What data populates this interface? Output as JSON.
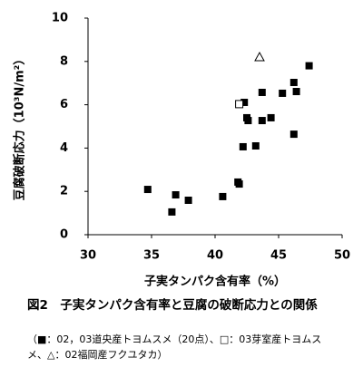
{
  "chart_data": {
    "type": "scatter",
    "xlabel": "子実タンパク含有率（%）",
    "ylabel": "豆腐破断応力（10³N/m²）",
    "caption": "図2　子実タンパク含有率と豆腐の破断応力との関係",
    "note": "（■：02，03道央産トヨムスメ（20点）、□：03芽室産トヨムスメ、△：02福岡産フクユタカ）",
    "xlim": [
      30,
      50
    ],
    "xticks": [
      30,
      35,
      40,
      45,
      50
    ],
    "ylim": [
      0,
      10
    ],
    "yticks": [
      0,
      2,
      4,
      6,
      8,
      10
    ],
    "series": [
      {
        "marker": "square-filled",
        "color": "#000000",
        "x": [
          34.7,
          36.9,
          36.6,
          37.9,
          40.6,
          41.8,
          41.9,
          42.2,
          42.3,
          42.5,
          42.6,
          43.2,
          43.7,
          43.7,
          44.4,
          45.3,
          46.2,
          46.4,
          46.2,
          47.4
        ],
        "values": [
          2.09,
          1.84,
          1.05,
          1.59,
          1.76,
          2.43,
          2.34,
          4.06,
          6.11,
          5.4,
          5.27,
          4.1,
          6.57,
          5.27,
          5.4,
          6.53,
          7.03,
          6.61,
          4.64,
          7.8
        ]
      },
      {
        "marker": "square-open",
        "color": "#000000",
        "x": [
          41.9
        ],
        "values": [
          6.03
        ]
      },
      {
        "marker": "triangle-open",
        "color": "#000000",
        "x": [
          43.5
        ],
        "values": [
          8.2
        ]
      }
    ]
  }
}
